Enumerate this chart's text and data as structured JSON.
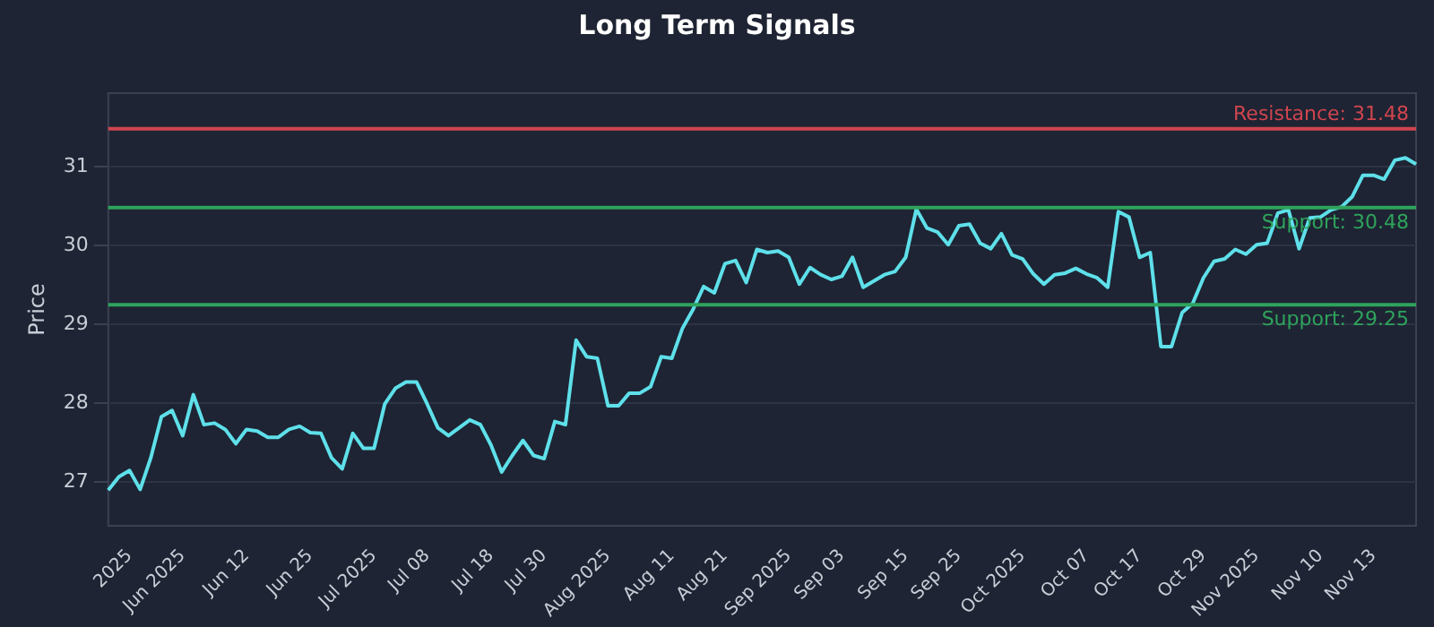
{
  "chart_data": {
    "type": "line",
    "title": "Long Term Signals",
    "ylabel": "Price",
    "categories": [
      null,
      null,
      "2025",
      null,
      null,
      null,
      null,
      "Jun 2025",
      null,
      null,
      null,
      null,
      null,
      "Jun 12",
      null,
      null,
      null,
      null,
      null,
      "Jun 25",
      null,
      null,
      null,
      null,
      null,
      "Jul 2025",
      null,
      null,
      null,
      null,
      "Jul 08",
      null,
      null,
      null,
      null,
      null,
      "Jul 18",
      null,
      null,
      null,
      null,
      "Jul 30",
      null,
      null,
      null,
      null,
      null,
      "Aug 2025",
      null,
      null,
      null,
      null,
      null,
      "Aug 11",
      null,
      null,
      null,
      null,
      "Aug 21",
      null,
      null,
      null,
      null,
      null,
      "Sep 2025",
      null,
      null,
      null,
      null,
      "Sep 03",
      null,
      null,
      null,
      null,
      null,
      "Sep 15",
      null,
      null,
      null,
      null,
      "Sep 25",
      null,
      null,
      null,
      null,
      null,
      "Oct 2025",
      null,
      null,
      null,
      null,
      null,
      "Oct 07",
      null,
      null,
      null,
      null,
      "Oct 17",
      null,
      null,
      null,
      null,
      null,
      "Oct 29",
      null,
      null,
      null,
      null,
      "Nov 2025",
      null,
      null,
      null,
      null,
      null,
      "Nov 10",
      null,
      null,
      null,
      null,
      "Nov 13",
      null,
      null,
      null,
      null
    ],
    "series": [
      {
        "color": "#5ee0ea",
        "values": [
          26.9,
          27.07,
          27.15,
          26.91,
          27.31,
          27.83,
          27.91,
          27.59,
          28.11,
          27.73,
          27.75,
          27.67,
          27.49,
          27.67,
          27.65,
          27.57,
          27.57,
          27.67,
          27.71,
          27.63,
          27.62,
          27.31,
          27.17,
          27.62,
          27.43,
          27.43,
          27.99,
          28.19,
          28.27,
          28.27,
          27.99,
          27.69,
          27.59,
          27.69,
          27.79,
          27.73,
          27.47,
          27.13,
          27.34,
          27.53,
          27.34,
          27.3,
          27.77,
          27.73,
          28.8,
          28.59,
          28.57,
          27.97,
          27.97,
          28.13,
          28.13,
          28.21,
          28.59,
          28.57,
          28.95,
          29.19,
          29.48,
          29.4,
          29.77,
          29.81,
          29.53,
          29.95,
          29.91,
          29.93,
          29.85,
          29.51,
          29.72,
          29.63,
          29.57,
          29.61,
          29.85,
          29.47,
          29.55,
          29.63,
          29.67,
          29.85,
          30.46,
          30.22,
          30.17,
          30.01,
          30.25,
          30.27,
          30.03,
          29.96,
          30.15,
          29.88,
          29.83,
          29.64,
          29.51,
          29.63,
          29.65,
          29.71,
          29.64,
          29.59,
          29.47,
          30.43,
          30.36,
          29.85,
          29.91,
          28.72,
          28.72,
          29.15,
          29.27,
          29.59,
          29.8,
          29.83,
          29.95,
          29.89,
          30.01,
          30.03,
          30.41,
          30.45,
          29.96,
          30.35,
          30.36,
          30.45,
          30.49,
          30.62,
          30.89,
          30.89,
          30.84,
          31.08,
          31.11,
          31.03
        ]
      }
    ],
    "ylim": [
      26.45,
      31.93
    ],
    "yticks": [
      27,
      28,
      29,
      30,
      31
    ],
    "grid": "y",
    "legend": false,
    "ref_lines": [
      {
        "axis": "y",
        "value": 31.48,
        "label": "Resistance: 31.48",
        "color": "#d0454f"
      },
      {
        "axis": "y",
        "value": 30.48,
        "label": "Support: 30.48",
        "color": "#2fa35c"
      },
      {
        "axis": "y",
        "value": 29.25,
        "label": "Support: 29.25",
        "color": "#2fa35c"
      }
    ]
  }
}
